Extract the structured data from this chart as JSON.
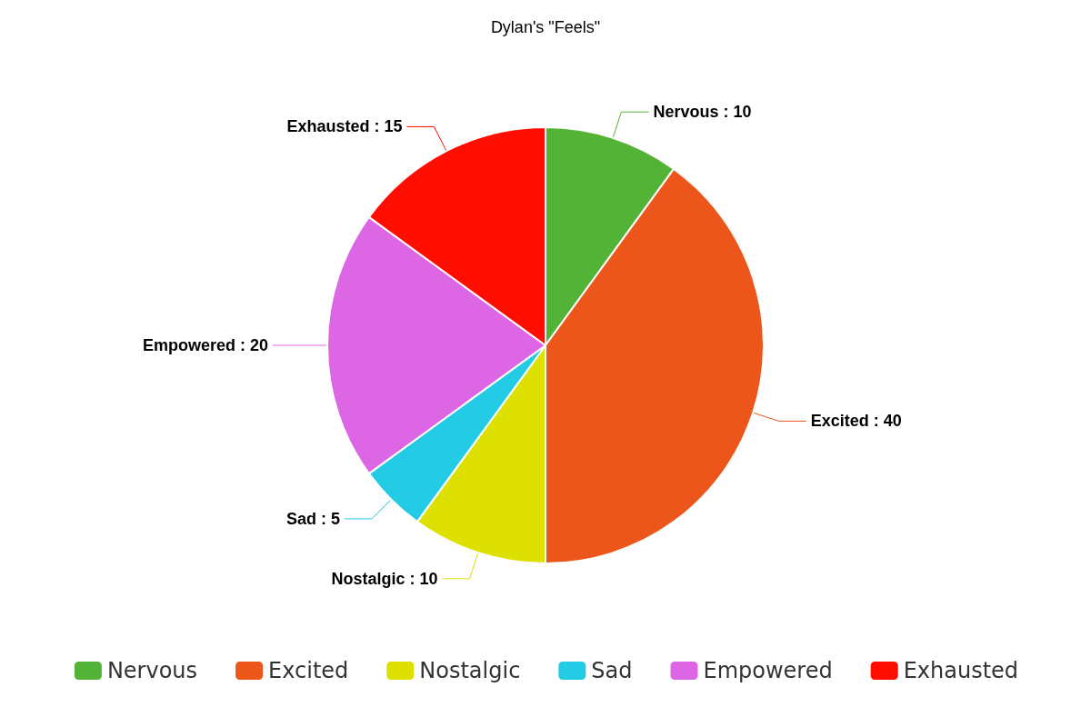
{
  "chart_data": {
    "type": "pie",
    "title": "Dylan's \"Feels\"",
    "categories": [
      "Nervous",
      "Excited",
      "Nostalgic",
      "Sad",
      "Empowered",
      "Exhausted"
    ],
    "values": [
      10,
      40,
      10,
      5,
      20,
      15
    ],
    "colors": [
      "#53b336",
      "#ec561b",
      "#dde000",
      "#24cbe5",
      "#dd66e5",
      "#ff0d00"
    ],
    "value_labels": [
      "Nervous : 10",
      "Excited : 40",
      "Nostalgic : 10",
      "Sad : 5",
      "Empowered : 20",
      "Exhausted : 15"
    ],
    "legend": "bottom"
  }
}
